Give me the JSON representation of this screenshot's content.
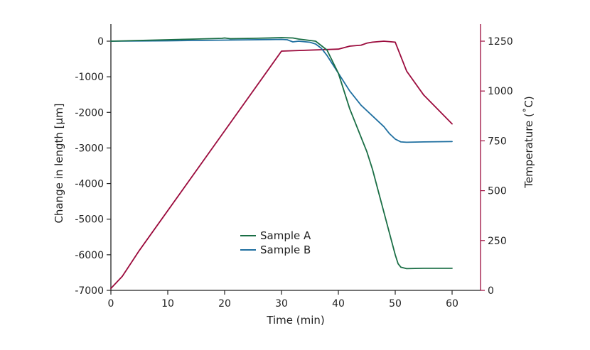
{
  "chart_data": {
    "type": "line",
    "xlabel": "Time (min)",
    "ylabel": "Change in length [µm]",
    "y2label": "Temperature (˚C)",
    "xlim": [
      0,
      65
    ],
    "ylim": [
      -7000,
      500
    ],
    "y2lim": [
      0,
      1300
    ],
    "xticks": [
      "0",
      "10",
      "20",
      "30",
      "40",
      "50",
      "60"
    ],
    "yticks": [
      "0",
      "-1000",
      "-2000",
      "-3000",
      "-4000",
      "-5000",
      "-6000",
      "-7000"
    ],
    "y2ticks": [
      "0",
      "250",
      "500",
      "750",
      "1000",
      "1250"
    ],
    "grid": false,
    "legend_position": "lower-center",
    "colors": {
      "sample_a": "#1a6e45",
      "sample_b": "#1f6fa0",
      "temperature": "#9b0a3c",
      "axis": "#222222"
    },
    "series": [
      {
        "name": "Sample A",
        "axis": "left",
        "x": [
          0,
          5,
          10,
          15,
          19.5,
          20,
          21,
          25,
          30,
          32,
          33,
          34,
          36,
          38,
          40,
          41,
          42,
          43,
          44,
          45,
          46,
          47,
          48,
          49,
          50,
          50.5,
          51,
          52,
          55,
          60
        ],
        "y": [
          0,
          20,
          40,
          60,
          80,
          90,
          70,
          80,
          100,
          90,
          60,
          40,
          0,
          -250,
          -900,
          -1400,
          -1900,
          -2300,
          -2700,
          -3100,
          -3600,
          -4200,
          -4800,
          -5400,
          -6000,
          -6250,
          -6350,
          -6390,
          -6380,
          -6380
        ]
      },
      {
        "name": "Sample B",
        "axis": "left",
        "x": [
          0,
          10,
          20,
          30,
          31,
          32,
          33,
          35,
          36,
          37,
          38,
          40,
          42,
          44,
          46,
          48,
          49,
          50,
          51,
          52,
          55,
          60
        ],
        "y": [
          0,
          10,
          30,
          50,
          40,
          -20,
          0,
          -30,
          -80,
          -200,
          -400,
          -900,
          -1400,
          -1800,
          -2100,
          -2400,
          -2600,
          -2750,
          -2830,
          -2840,
          -2830,
          -2820
        ]
      },
      {
        "name": "",
        "axis": "right",
        "x": [
          0,
          2,
          5,
          10,
          20,
          30,
          40,
          42,
          44,
          45,
          46,
          48,
          50,
          52,
          55,
          60
        ],
        "y": [
          10,
          70,
          200,
          400,
          800,
          1200,
          1210,
          1225,
          1230,
          1240,
          1245,
          1250,
          1245,
          1100,
          980,
          835
        ]
      }
    ]
  }
}
